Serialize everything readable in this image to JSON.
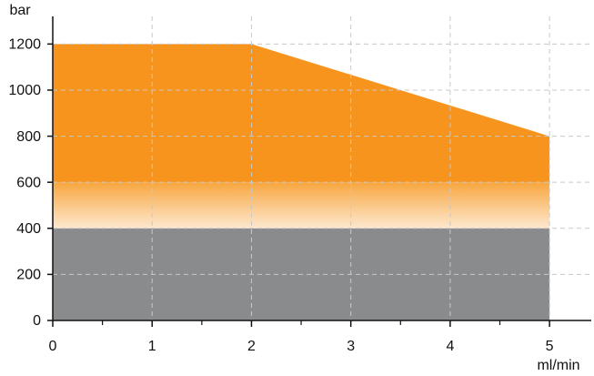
{
  "chart_data": {
    "type": "area",
    "y_label": "bar",
    "x_label": "ml/min",
    "x": [
      0,
      2,
      5
    ],
    "series": [
      {
        "color": "#8a8b8d",
        "values": [
          400,
          400,
          400
        ]
      },
      {
        "color": [
          "#f8a640",
          "#fde8cf"
        ],
        "values": [
          200,
          200,
          200
        ]
      },
      {
        "color": "#f7941d",
        "values": [
          600,
          600,
          200
        ]
      }
    ],
    "stacked": true,
    "xlim": [
      0,
      5.42
    ],
    "ylim": [
      0,
      1320
    ],
    "xticks": [
      0,
      1,
      2,
      3,
      4,
      5
    ],
    "xminorticks": [
      0.5,
      1.5,
      2.5,
      3.5,
      4.5
    ],
    "yticks": [
      0,
      200,
      400,
      600,
      800,
      1000,
      1200
    ],
    "grid": true,
    "grid_color": "#c8c8c8"
  }
}
